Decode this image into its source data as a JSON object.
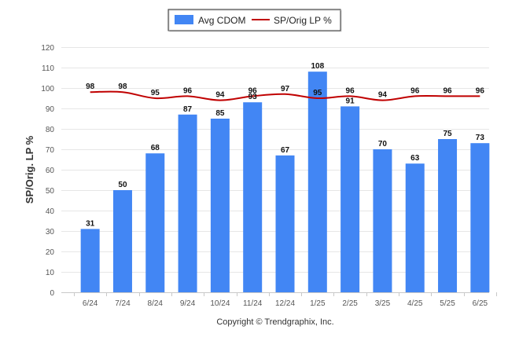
{
  "chart_data": {
    "type": "bar",
    "ylabel": "SP/Orig. LP %",
    "ylim": [
      0,
      120
    ],
    "yticks": [
      0,
      10,
      20,
      30,
      40,
      50,
      60,
      70,
      80,
      90,
      100,
      110,
      120
    ],
    "categories": [
      "6/24",
      "7/24",
      "8/24",
      "9/24",
      "10/24",
      "11/24",
      "12/24",
      "1/25",
      "2/25",
      "3/25",
      "4/25",
      "5/25",
      "6/25"
    ],
    "series": [
      {
        "name": "Avg CDOM",
        "type": "bar",
        "color": "#4286f4",
        "values": [
          31,
          50,
          68,
          87,
          85,
          93,
          67,
          108,
          91,
          70,
          63,
          75,
          73
        ]
      },
      {
        "name": "SP/Orig LP %",
        "type": "line",
        "color": "#c00000",
        "values": [
          98,
          98,
          95,
          96,
          94,
          96,
          97,
          95,
          96,
          94,
          96,
          96,
          96
        ]
      }
    ],
    "grid": true,
    "legend_position": "top-center"
  },
  "footer": {
    "copyright": "Copyright © Trendgraphix, Inc."
  }
}
